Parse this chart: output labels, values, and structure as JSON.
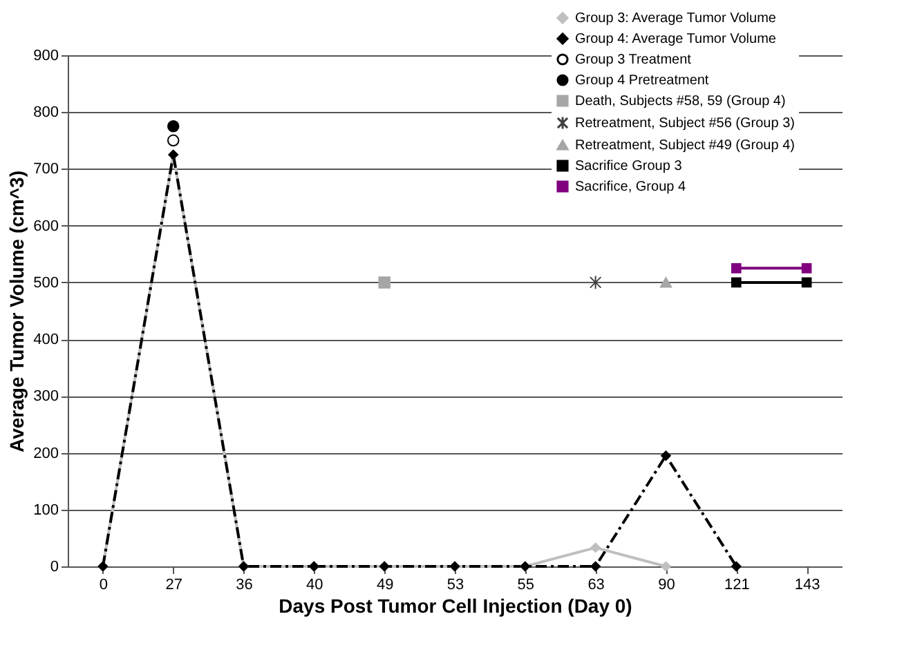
{
  "chart_data": {
    "type": "line",
    "xlabel": "Days Post Tumor Cell Injection (Day 0)",
    "ylabel": "Average Tumor Volume (cm^3)",
    "categories": [
      "0",
      "27",
      "36",
      "40",
      "49",
      "53",
      "55",
      "63",
      "90",
      "121",
      "143"
    ],
    "ylim": [
      0,
      900
    ],
    "yticks": [
      0,
      100,
      200,
      300,
      400,
      500,
      600,
      700,
      800,
      900
    ],
    "grid": "y",
    "legend": "top right",
    "series": [
      {
        "name": "Group 3: Average Tumor Volume",
        "color": "#bfbfbf",
        "marker": "diamond",
        "line_style": "solid",
        "values": [
          0,
          725,
          0,
          0,
          0,
          0,
          0,
          33,
          0,
          null,
          null
        ]
      },
      {
        "name": "Group 4: Average Tumor Volume",
        "color": "#000000",
        "marker": "diamond",
        "line_style": "dashed",
        "values": [
          0,
          725,
          0,
          0,
          0,
          0,
          0,
          0,
          195,
          0,
          null
        ]
      },
      {
        "name": "Group 3 Treatment",
        "type": "scatter",
        "color": "#ffffff",
        "marker": "circle",
        "x": [
          "27"
        ],
        "values": [
          750
        ]
      },
      {
        "name": "Group 4 Pretreatment",
        "type": "scatter",
        "color": "#000000",
        "marker": "circle",
        "x": [
          "27"
        ],
        "values": [
          775
        ]
      },
      {
        "name": "Death, Subjects #58, 59 (Group 4)",
        "type": "scatter",
        "color": "#a6a6a6",
        "marker": "square",
        "x": [
          "49"
        ],
        "values": [
          500
        ]
      },
      {
        "name": "Retreatment, Subject #56 (Group 3)",
        "type": "scatter",
        "color": "#404040",
        "marker": "cross",
        "x": [
          "63"
        ],
        "values": [
          500
        ]
      },
      {
        "name": "Retreatment, Subject #49 (Group 4)",
        "type": "scatter",
        "color": "#a6a6a6",
        "marker": "triangle",
        "x": [
          "90"
        ],
        "values": [
          500
        ]
      },
      {
        "name": "Sacrifice Group 3",
        "color": "#000000",
        "marker": "square",
        "line_style": "solid",
        "x": [
          "121",
          "143"
        ],
        "values": [
          500,
          500
        ]
      },
      {
        "name": "Sacrifice, Group 4",
        "color": "#800080",
        "marker": "square",
        "line_style": "solid",
        "x": [
          "121",
          "143"
        ],
        "values": [
          525,
          525
        ]
      }
    ]
  }
}
